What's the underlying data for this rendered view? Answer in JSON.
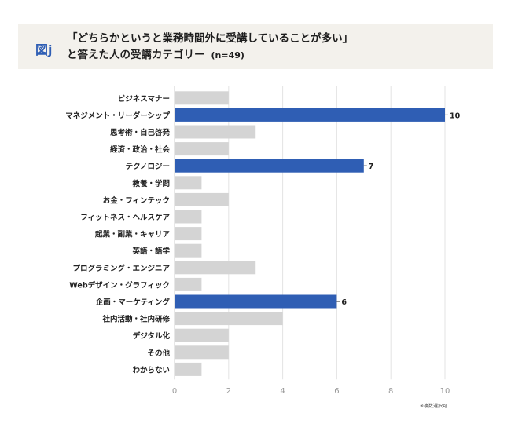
{
  "header": {
    "figure_label": "図j",
    "title_line1": "「どちらかというと業務時間外に受講していることが多い」",
    "title_line2": "と答えた人の受講カテゴリー",
    "sample_size": "(n=49)"
  },
  "footnote": "※複数選択可",
  "colors": {
    "highlight": "#2f5eb4",
    "base": "#d4d4d4",
    "header_bg": "#f3f1ec"
  },
  "chart_data": {
    "type": "bar",
    "orientation": "horizontal",
    "categories": [
      "ビジネスマナー",
      "マネジメント・リーダーシップ",
      "思考術・自己啓発",
      "経済・政治・社会",
      "テクノロジー",
      "教養・学問",
      "お金・フィンテック",
      "フィットネス・ヘルスケア",
      "起業・副業・キャリア",
      "英語・語学",
      "プログラミング・エンジニア",
      "Webデザイン・グラフィック",
      "企画・マーケティング",
      "社内活動・社内研修",
      "デジタル化",
      "その他",
      "わからない"
    ],
    "values": [
      2,
      10,
      3,
      2,
      7,
      1,
      2,
      1,
      1,
      1,
      3,
      1,
      6,
      4,
      2,
      2,
      1
    ],
    "highlighted": [
      false,
      true,
      false,
      false,
      true,
      false,
      false,
      false,
      false,
      false,
      false,
      false,
      true,
      false,
      false,
      false,
      false
    ],
    "data_labels": [
      "",
      "10",
      "",
      "",
      "7",
      "",
      "",
      "",
      "",
      "",
      "",
      "",
      "6",
      "",
      "",
      "",
      ""
    ],
    "xticks": [
      "0",
      "2",
      "4",
      "6",
      "8",
      "10"
    ],
    "xlim": [
      0,
      10
    ],
    "grid": true,
    "title": "「どちらかというと業務時間外に受講していることが多い」と答えた人の受講カテゴリー"
  }
}
